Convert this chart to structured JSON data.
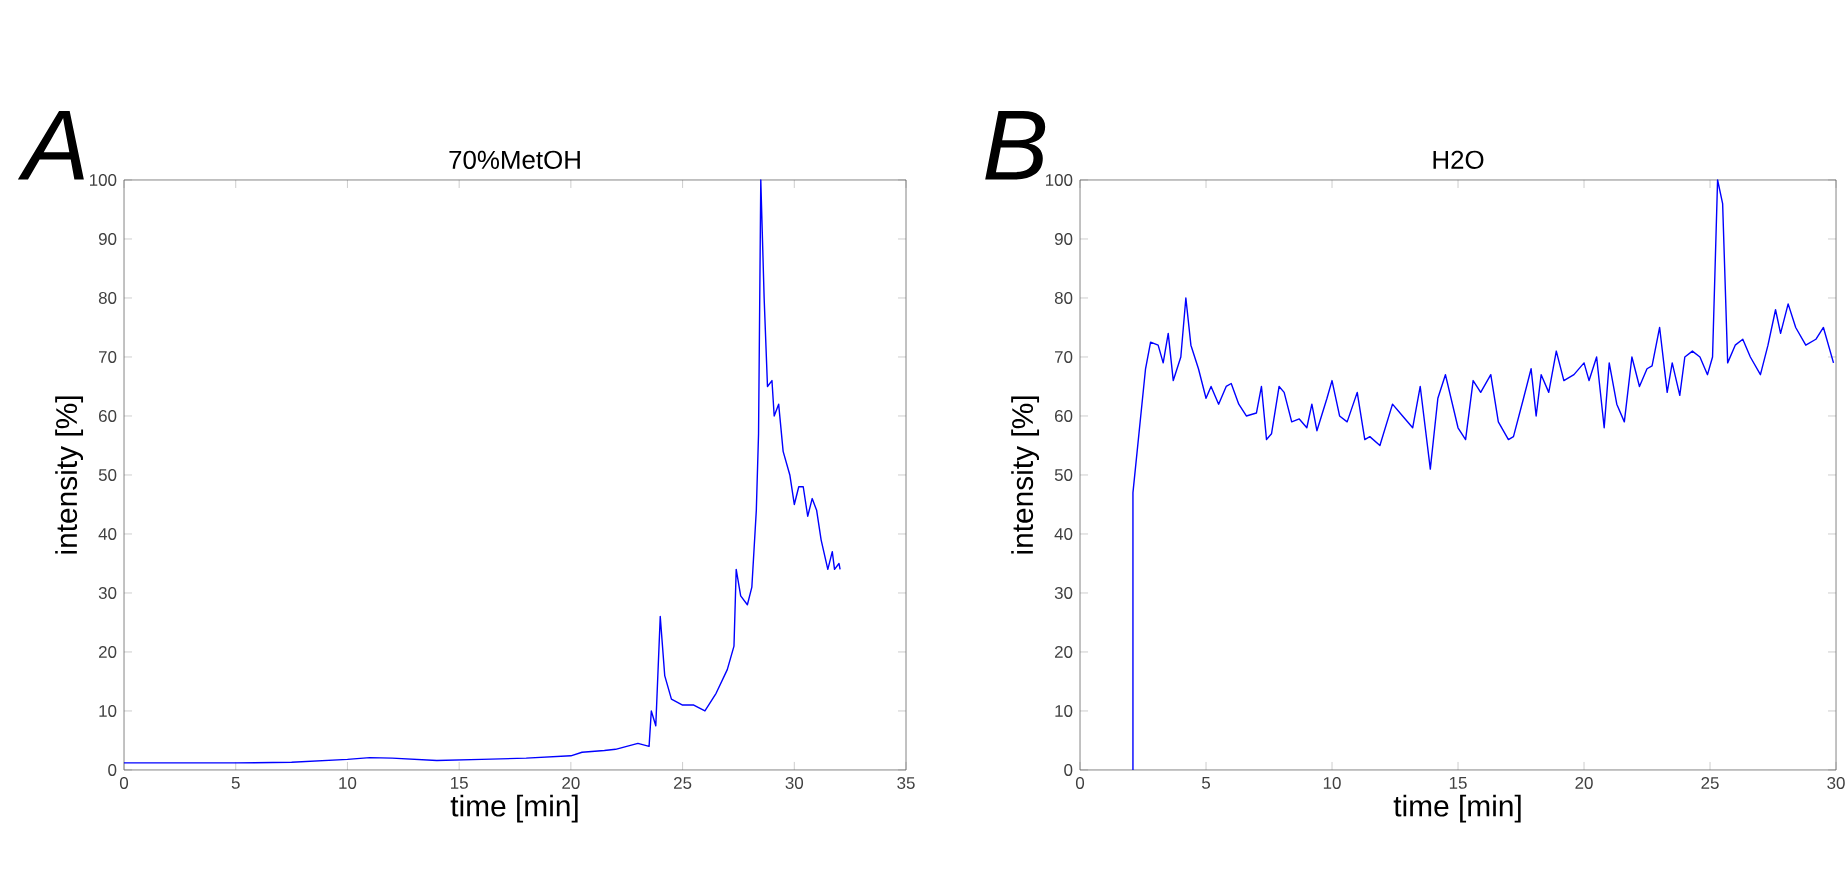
{
  "chart_data": [
    {
      "type": "line",
      "title": "70%MetOH",
      "xlabel": "time [min]",
      "ylabel": "intensity [%]",
      "annotations": [
        "A"
      ],
      "xlim": [
        0,
        35
      ],
      "ylim": [
        0,
        100
      ],
      "xticks": [
        0,
        5,
        10,
        15,
        20,
        25,
        30,
        35
      ],
      "yticks": [
        0,
        10,
        20,
        30,
        40,
        50,
        60,
        70,
        80,
        90,
        100
      ],
      "grid": false,
      "marker": "none",
      "line_style": "solid",
      "series": [
        {
          "color": "#0000ff",
          "x": [
            0,
            5,
            7.5,
            10,
            11,
            12,
            14,
            16,
            18,
            20,
            20.5,
            21.5,
            22,
            23,
            23.5,
            23.6,
            23.8,
            24,
            24.2,
            24.5,
            25,
            25.5,
            26,
            26.5,
            27,
            27.3,
            27.4,
            27.6,
            27.9,
            28.1,
            28.3,
            28.4,
            28.5,
            28.65,
            28.8,
            29,
            29.1,
            29.3,
            29.5,
            29.8,
            30,
            30.2,
            30.4,
            30.6,
            30.8,
            31,
            31.2,
            31.5,
            31.7,
            31.8,
            32,
            32.05
          ],
          "values": [
            1.2,
            1.2,
            1.3,
            1.8,
            2.1,
            2.0,
            1.6,
            1.8,
            2.0,
            2.4,
            3.0,
            3.3,
            3.5,
            4.5,
            4.0,
            10,
            7.5,
            26,
            16,
            12,
            11,
            11,
            10,
            13,
            17,
            21,
            34,
            29.5,
            28,
            31,
            44,
            57,
            100,
            80,
            65,
            66,
            60,
            62,
            54,
            50,
            45,
            48,
            48,
            43,
            46,
            44,
            39,
            34,
            37,
            34,
            35,
            34
          ]
        }
      ]
    },
    {
      "type": "line",
      "title": "H2O",
      "xlabel": "time [min]",
      "ylabel": "intensity [%]",
      "annotations": [
        "B"
      ],
      "xlim": [
        0,
        30
      ],
      "ylim": [
        0,
        100
      ],
      "xticks": [
        0,
        5,
        10,
        15,
        20,
        25,
        30
      ],
      "yticks": [
        0,
        10,
        20,
        30,
        40,
        50,
        60,
        70,
        80,
        90,
        100
      ],
      "grid": false,
      "marker": "none",
      "line_style": "solid",
      "series": [
        {
          "color": "#0000ff",
          "x": [
            2.1,
            2.1,
            2.6,
            2.8,
            3.1,
            3.3,
            3.5,
            3.7,
            4.0,
            4.2,
            4.4,
            4.7,
            5.0,
            5.2,
            5.5,
            5.8,
            6.0,
            6.3,
            6.6,
            7.0,
            7.2,
            7.4,
            7.6,
            7.9,
            8.1,
            8.4,
            8.7,
            9.0,
            9.2,
            9.4,
            9.8,
            10.0,
            10.3,
            10.6,
            11.0,
            11.3,
            11.5,
            11.9,
            12.4,
            12.8,
            13.2,
            13.5,
            13.9,
            14.2,
            14.5,
            15.0,
            15.3,
            15.6,
            15.9,
            16.3,
            16.6,
            17.0,
            17.2,
            17.6,
            17.9,
            18.1,
            18.3,
            18.6,
            18.9,
            19.2,
            19.6,
            20.0,
            20.2,
            20.5,
            20.8,
            21.0,
            21.3,
            21.6,
            21.9,
            22.2,
            22.5,
            22.7,
            23.0,
            23.3,
            23.5,
            23.8,
            24.0,
            24.3,
            24.6,
            24.9,
            25.1,
            25.3,
            25.5,
            25.7,
            26.0,
            26.3,
            26.6,
            27.0,
            27.3,
            27.6,
            27.8,
            28.1,
            28.4,
            28.8,
            29.2,
            29.5,
            29.9
          ],
          "values": [
            0,
            47,
            68,
            72.5,
            72,
            69,
            74,
            66,
            70,
            80,
            72,
            68,
            63,
            65,
            62,
            65,
            65.5,
            62,
            60,
            60.5,
            65,
            56,
            57,
            65,
            64,
            59,
            59.5,
            58,
            62,
            57.5,
            63,
            66,
            60,
            59,
            64,
            56,
            56.5,
            55,
            62,
            60,
            58,
            65,
            51,
            63,
            67,
            58,
            56,
            66,
            64,
            67,
            59,
            56,
            56.5,
            63,
            68,
            60,
            67,
            64,
            71,
            66,
            67,
            69,
            66,
            70,
            58,
            69,
            62,
            59,
            70,
            65,
            68,
            68.5,
            75,
            64,
            69,
            63.5,
            70,
            71,
            70,
            67,
            70,
            100,
            96,
            69,
            72,
            73,
            70,
            67,
            72,
            78,
            74,
            79,
            75,
            72,
            73,
            75,
            69
          ]
        }
      ]
    }
  ]
}
